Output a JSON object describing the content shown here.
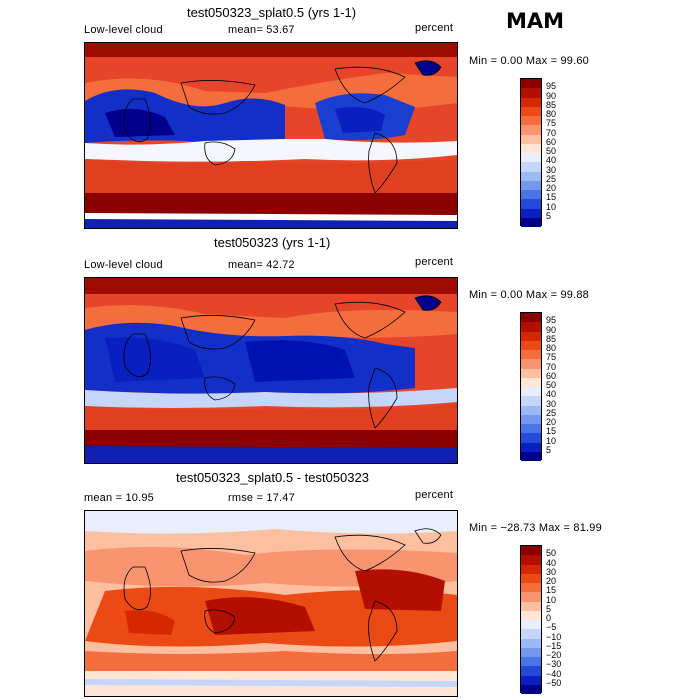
{
  "season": "MAM",
  "panels": [
    {
      "id": "p1",
      "title": "test050323_splat0.5 (yrs 1-1)",
      "left_label": "Low-level cloud",
      "mid_label": "mean=  53.67",
      "right_label": "percent",
      "minmax": "Min =    0.00 Max =   99.60",
      "colorbar": {
        "labels": [
          "95",
          "90",
          "85",
          "80",
          "75",
          "70",
          "60",
          "50",
          "40",
          "30",
          "25",
          "20",
          "15",
          "10",
          "5"
        ],
        "colors": [
          "#8b0000",
          "#b30f00",
          "#d62800",
          "#eb4a14",
          "#f46d3c",
          "#f99470",
          "#fcbfa0",
          "#fde6d6",
          "#e8eefc",
          "#c6d6fa",
          "#9db9f5",
          "#7398ee",
          "#4b74e6",
          "#2549d8",
          "#0a1fc0",
          "#00008b"
        ]
      }
    },
    {
      "id": "p2",
      "title": "test050323 (yrs 1-1)",
      "left_label": "Low-level cloud",
      "mid_label": "mean=  42.72",
      "right_label": "percent",
      "minmax": "Min =    0.00 Max =   99.88",
      "colorbar": {
        "labels": [
          "95",
          "90",
          "85",
          "80",
          "75",
          "70",
          "60",
          "50",
          "40",
          "30",
          "25",
          "20",
          "15",
          "10",
          "5"
        ],
        "colors": [
          "#8b0000",
          "#b30f00",
          "#d62800",
          "#eb4a14",
          "#f46d3c",
          "#f99470",
          "#fcbfa0",
          "#fde6d6",
          "#e8eefc",
          "#c6d6fa",
          "#9db9f5",
          "#7398ee",
          "#4b74e6",
          "#2549d8",
          "#0a1fc0",
          "#00008b"
        ]
      }
    },
    {
      "id": "p3",
      "title": "test050323_splat0.5 - test050323",
      "left_label": "mean =   10.95",
      "mid_label": "rmse =   17.47",
      "right_label": "percent",
      "minmax": "Min = −28.73 Max =   81.99",
      "colorbar": {
        "labels": [
          "50",
          "40",
          "30",
          "20",
          "15",
          "10",
          "5",
          "0",
          "−5",
          "−10",
          "−15",
          "−20",
          "−30",
          "−40",
          "−50"
        ],
        "colors": [
          "#8b0000",
          "#b30f00",
          "#d62800",
          "#eb4a14",
          "#f46d3c",
          "#f99470",
          "#fcbfa0",
          "#fde6d6",
          "#e8eefc",
          "#c6d6fa",
          "#9db9f5",
          "#7398ee",
          "#4b74e6",
          "#2549d8",
          "#0a1fc0",
          "#00008b"
        ]
      }
    }
  ]
}
